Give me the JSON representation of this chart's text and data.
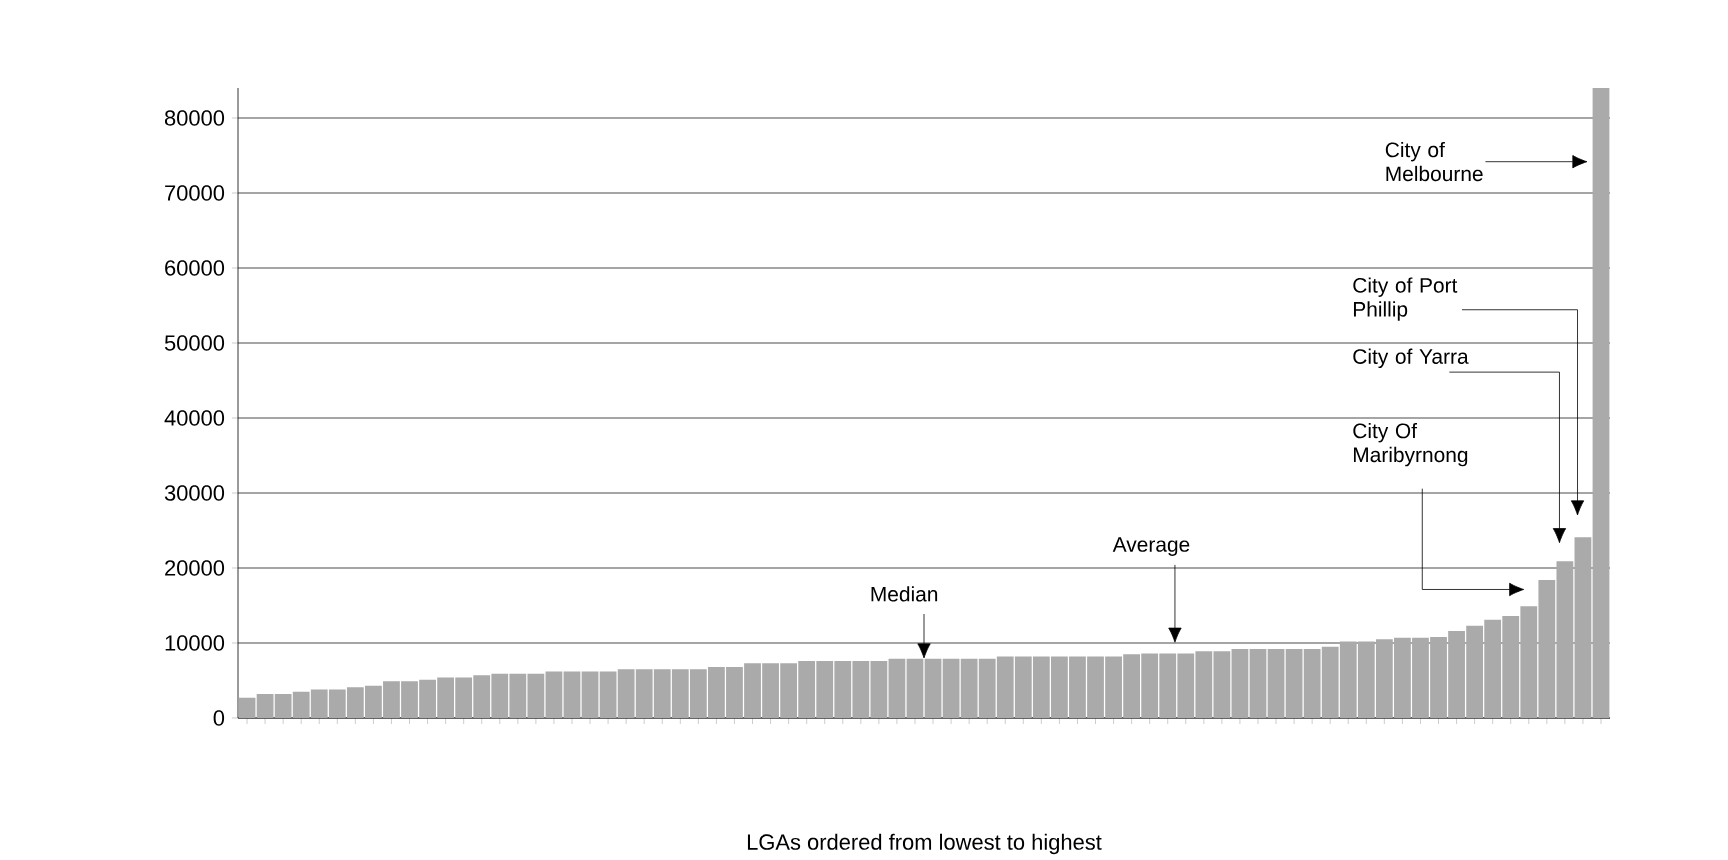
{
  "chart_data": {
    "type": "bar",
    "xlabel": "LGAs ordered from lowest to highest",
    "categories": [
      null,
      null,
      null,
      null,
      null,
      null,
      null,
      null,
      null,
      null,
      null,
      null,
      null,
      null,
      null,
      null,
      null,
      null,
      null,
      null,
      null,
      null,
      null,
      null,
      null,
      null,
      null,
      null,
      null,
      null,
      null,
      null,
      null,
      null,
      null,
      null,
      null,
      null,
      null,
      null,
      null,
      null,
      null,
      null,
      null,
      null,
      null,
      null,
      null,
      null,
      null,
      null,
      null,
      null,
      null,
      null,
      null,
      null,
      null,
      null,
      null,
      null,
      null,
      null,
      null,
      null,
      null,
      null,
      null,
      null,
      null,
      null,
      null,
      null,
      null,
      null
    ],
    "values": [
      2700,
      3200,
      3200,
      3500,
      3800,
      3800,
      4100,
      4300,
      4900,
      4900,
      5100,
      5400,
      5400,
      5700,
      5900,
      5900,
      5900,
      6200,
      6200,
      6200,
      6200,
      6500,
      6500,
      6500,
      6500,
      6500,
      6800,
      6800,
      7300,
      7300,
      7300,
      7600,
      7600,
      7600,
      7600,
      7600,
      7900,
      7900,
      7900,
      7900,
      7900,
      7900,
      8200,
      8200,
      8200,
      8200,
      8200,
      8200,
      8200,
      8500,
      8600,
      8600,
      8600,
      8900,
      8900,
      9200,
      9200,
      9200,
      9200,
      9200,
      9500,
      10200,
      10200,
      10500,
      10700,
      10700,
      10800,
      11600,
      12300,
      13100,
      13600,
      14900,
      18400,
      20900,
      24100,
      84000
    ],
    "color": "#aaaaaa",
    "ylim": [
      0,
      84000
    ],
    "yticks": [
      0,
      10000,
      20000,
      30000,
      40000,
      50000,
      60000,
      70000,
      80000
    ],
    "grid": "y",
    "annotations": [
      "Median",
      "Average",
      "City of Melbourne",
      "City of Port Phillip",
      "City of Yarra",
      "City Of Maribyrnong"
    ]
  }
}
